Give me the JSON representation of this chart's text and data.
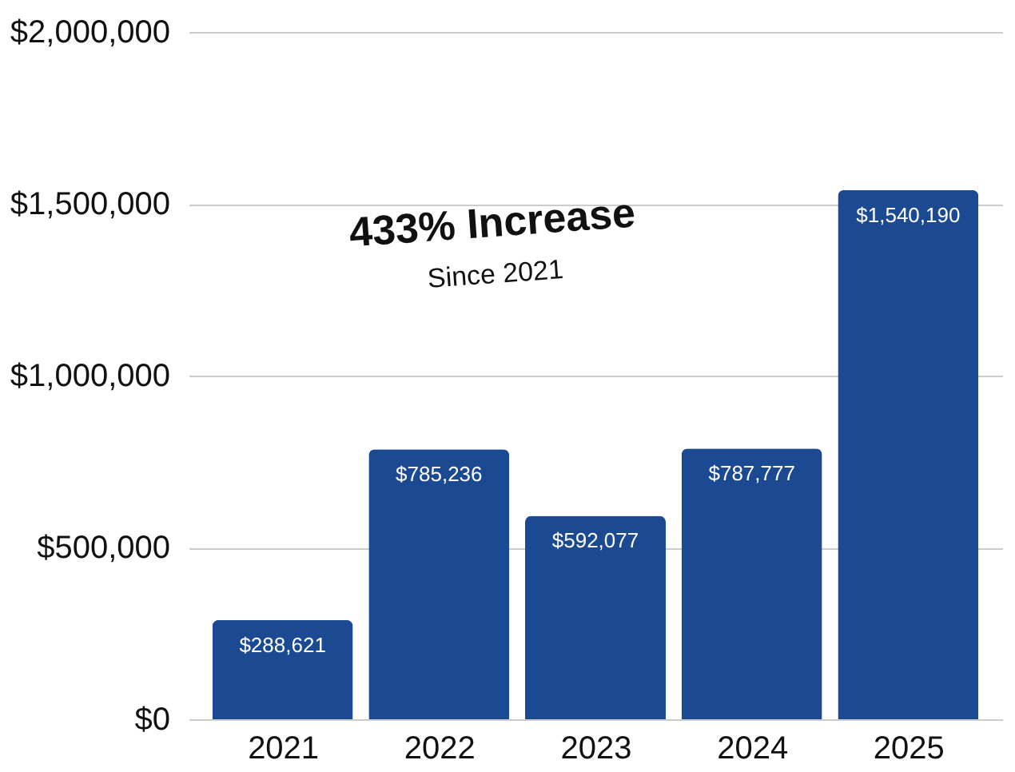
{
  "chart_data": {
    "type": "bar",
    "categories": [
      "2021",
      "2022",
      "2023",
      "2024",
      "2025"
    ],
    "values": [
      288621,
      785236,
      592077,
      787777,
      1540190
    ],
    "value_labels": [
      "$288,621",
      "$785,236",
      "$592,077",
      "$787,777",
      "$1,540,190"
    ],
    "color": "#1b4a93",
    "ylim": [
      0,
      2000000
    ],
    "yticks": [
      {
        "value": 0,
        "label": "$0"
      },
      {
        "value": 500000,
        "label": "$500,000"
      },
      {
        "value": 1000000,
        "label": "$1,000,000"
      },
      {
        "value": 1500000,
        "label": "$1,500,000"
      },
      {
        "value": 2000000,
        "label": "$2,000,000"
      }
    ],
    "grid": "y",
    "annotations": [
      "433% Increase",
      "Since 2021"
    ]
  }
}
